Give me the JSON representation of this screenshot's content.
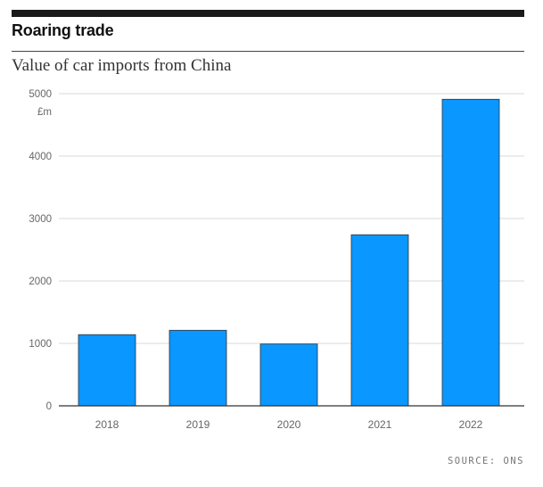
{
  "header": {
    "title": "Roaring trade",
    "subtitle": "Value of car imports from China"
  },
  "footer": {
    "source": "SOURCE: ONS"
  },
  "colors": {
    "bar": "#0a97ff",
    "grid": "#d9d9d9",
    "axis": "#333333",
    "tick_text": "#666666"
  },
  "chart_data": {
    "type": "bar",
    "title": "Value of car imports from China",
    "categories": [
      "2018",
      "2019",
      "2020",
      "2021",
      "2022"
    ],
    "values": [
      1140,
      1210,
      990,
      2740,
      4910
    ],
    "ylabel": "£m",
    "ylim": [
      0,
      5000
    ],
    "yticks": [
      "0",
      "1000",
      "2000",
      "3000",
      "4000",
      "5000"
    ],
    "grid": true
  }
}
